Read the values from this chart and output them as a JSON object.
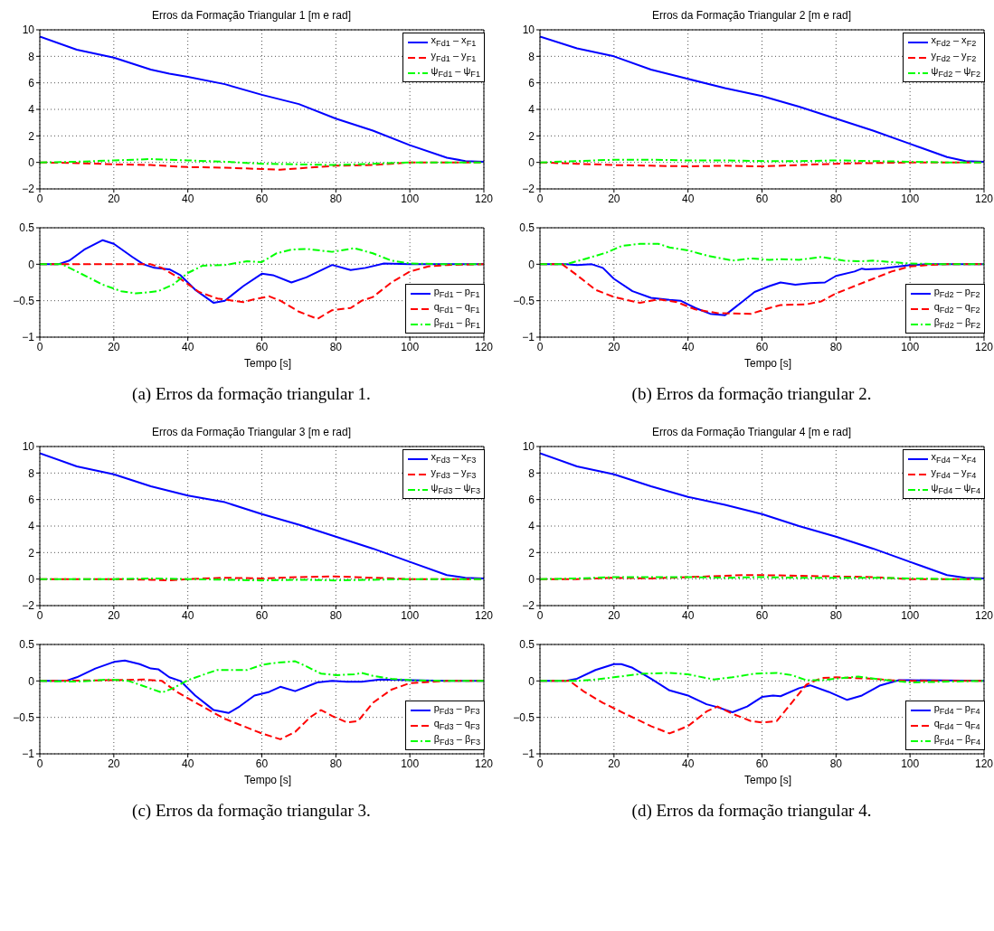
{
  "chart_data": [
    {
      "type": "line",
      "title": "Erros da Formação Triangular 1 [m e rad]",
      "xlim": [
        0,
        120
      ],
      "xticks": [
        0,
        20,
        40,
        60,
        80,
        100,
        120
      ],
      "ylim": [
        -2,
        10
      ],
      "yticks": [
        -2,
        0,
        2,
        4,
        6,
        8,
        10
      ],
      "grid": true,
      "legend": "top right",
      "series": [
        {
          "name": "x$_{Fd1}$ – x$_{F1}$",
          "color": "#0000ff",
          "line_style": "solid",
          "x": [
            0,
            10,
            20,
            30,
            35,
            40,
            50,
            60,
            70,
            80,
            90,
            100,
            110,
            115,
            120
          ],
          "values": [
            9.5,
            8.5,
            7.9,
            7.0,
            6.7,
            6.45,
            5.9,
            5.1,
            4.4,
            3.3,
            2.4,
            1.3,
            0.35,
            0.1,
            0.05
          ]
        },
        {
          "name": "y$_{Fd1}$ – y$_{F1}$",
          "color": "#ff0000",
          "line_style": "dashed",
          "x": [
            0,
            10,
            20,
            30,
            40,
            50,
            60,
            65,
            70,
            80,
            90,
            100,
            110,
            120
          ],
          "values": [
            0,
            -0.05,
            -0.15,
            -0.2,
            -0.35,
            -0.4,
            -0.5,
            -0.55,
            -0.45,
            -0.25,
            -0.2,
            0,
            0,
            0
          ]
        },
        {
          "name": "ψ$_{Fd1}$ – ψ$_{F1}$",
          "color": "#00ff00",
          "line_style": "dotted",
          "x": [
            0,
            10,
            20,
            30,
            40,
            50,
            60,
            70,
            80,
            90,
            100,
            120
          ],
          "values": [
            0,
            0.05,
            0.15,
            0.25,
            0.15,
            0.05,
            -0.1,
            -0.15,
            -0.2,
            -0.1,
            0,
            0
          ]
        }
      ]
    },
    {
      "type": "line",
      "title": "Erros da Formação Triangular 2 [m e rad]",
      "xlim": [
        0,
        120
      ],
      "xticks": [
        0,
        20,
        40,
        60,
        80,
        100,
        120
      ],
      "ylim": [
        -2,
        10
      ],
      "yticks": [
        -2,
        0,
        2,
        4,
        6,
        8,
        10
      ],
      "grid": true,
      "legend": "top right",
      "series": [
        {
          "name": "x$_{Fd2}$ – x$_{F2}$",
          "color": "#0000ff",
          "line_style": "solid",
          "x": [
            0,
            10,
            20,
            30,
            40,
            50,
            60,
            70,
            80,
            90,
            100,
            110,
            115,
            120
          ],
          "values": [
            9.5,
            8.6,
            8.0,
            7.0,
            6.3,
            5.6,
            5.0,
            4.2,
            3.3,
            2.4,
            1.4,
            0.4,
            0.1,
            0.05
          ]
        },
        {
          "name": "y$_{Fd2}$ – y$_{F2}$",
          "color": "#ff0000",
          "line_style": "dashed",
          "x": [
            0,
            10,
            20,
            30,
            40,
            50,
            60,
            70,
            80,
            90,
            100,
            110,
            120
          ],
          "values": [
            0,
            -0.1,
            -0.2,
            -0.25,
            -0.3,
            -0.25,
            -0.3,
            -0.2,
            -0.1,
            -0.05,
            0,
            0,
            0
          ]
        },
        {
          "name": "ψ$_{Fd2}$ – ψ$_{F2}$",
          "color": "#00ff00",
          "line_style": "dotted",
          "x": [
            0,
            10,
            20,
            30,
            40,
            50,
            60,
            70,
            80,
            90,
            100,
            110,
            120
          ],
          "values": [
            0,
            0.1,
            0.2,
            0.2,
            0.15,
            0.15,
            0.1,
            0.1,
            0.15,
            0.1,
            0.05,
            0,
            0
          ]
        }
      ]
    },
    {
      "type": "line",
      "xlabel": "Tempo [s]",
      "annotations": [
        "(a)  Erros da formação triangular 1."
      ],
      "xlim": [
        0,
        120
      ],
      "xticks": [
        0,
        20,
        40,
        60,
        80,
        100,
        120
      ],
      "ylim": [
        -1,
        0.5
      ],
      "yticks": [
        -1,
        -0.5,
        0,
        0.5
      ],
      "grid": true,
      "legend": "bottom right",
      "series": [
        {
          "name": "p$_{Fd1}$ – p$_{F1}$",
          "color": "#0000ff",
          "line_style": "solid",
          "x": [
            0,
            5,
            8,
            12,
            17,
            20,
            25,
            28,
            31,
            35,
            38,
            42,
            47,
            50,
            55,
            60,
            63,
            68,
            72,
            79,
            84,
            88,
            93,
            100,
            120
          ],
          "values": [
            0,
            0,
            0.05,
            0.2,
            0.33,
            0.28,
            0.1,
            0,
            -0.05,
            -0.07,
            -0.15,
            -0.35,
            -0.53,
            -0.5,
            -0.3,
            -0.13,
            -0.15,
            -0.25,
            -0.18,
            -0.01,
            -0.08,
            -0.05,
            0.01,
            0,
            0
          ]
        },
        {
          "name": "q$_{Fd1}$ – q$_{F1}$",
          "color": "#ff0000",
          "line_style": "dashed",
          "x": [
            0,
            30,
            33,
            38,
            43,
            48,
            55,
            58,
            62,
            65,
            70,
            75,
            79,
            84,
            87,
            90,
            95,
            100,
            105,
            110,
            120
          ],
          "values": [
            0,
            0,
            -0.05,
            -0.2,
            -0.38,
            -0.47,
            -0.52,
            -0.48,
            -0.44,
            -0.5,
            -0.65,
            -0.75,
            -0.63,
            -0.6,
            -0.5,
            -0.45,
            -0.25,
            -0.1,
            -0.03,
            -0.01,
            0
          ]
        },
        {
          "name": "β$_{Fd1}$ – β$_{F1}$",
          "color": "#00ff00",
          "line_style": "dotted",
          "x": [
            0,
            6,
            10,
            17,
            22,
            26,
            32,
            36,
            40,
            44,
            50,
            56,
            60,
            64,
            68,
            72,
            79,
            85,
            90,
            95,
            100,
            110,
            120
          ],
          "values": [
            0,
            0,
            -0.1,
            -0.28,
            -0.37,
            -0.4,
            -0.37,
            -0.28,
            -0.12,
            -0.02,
            -0.01,
            0.04,
            0.03,
            0.15,
            0.2,
            0.21,
            0.17,
            0.22,
            0.15,
            0.05,
            0.01,
            0,
            0
          ]
        }
      ]
    },
    {
      "type": "line",
      "xlabel": "Tempo [s]",
      "annotations": [
        "(b)  Erros da formação triangular 2."
      ],
      "xlim": [
        0,
        120
      ],
      "xticks": [
        0,
        20,
        40,
        60,
        80,
        100,
        120
      ],
      "ylim": [
        -1,
        0.5
      ],
      "yticks": [
        -1,
        -0.5,
        0,
        0.5
      ],
      "grid": true,
      "legend": "bottom right",
      "series": [
        {
          "name": "p$_{Fd2}$ – p$_{F2}$",
          "color": "#0000ff",
          "line_style": "solid",
          "x": [
            0,
            7,
            10,
            14,
            17,
            20,
            25,
            30,
            35,
            38,
            42,
            46,
            50,
            52,
            55,
            58,
            62,
            65,
            69,
            73,
            77,
            80,
            85,
            87,
            88,
            92,
            97,
            100,
            105,
            120
          ],
          "values": [
            0,
            0,
            -0.01,
            0,
            -0.05,
            -0.2,
            -0.37,
            -0.46,
            -0.49,
            -0.5,
            -0.6,
            -0.68,
            -0.7,
            -0.62,
            -0.5,
            -0.38,
            -0.3,
            -0.25,
            -0.28,
            -0.26,
            -0.25,
            -0.16,
            -0.1,
            -0.06,
            -0.07,
            -0.06,
            -0.03,
            -0.01,
            0,
            0
          ]
        },
        {
          "name": "q$_{Fd2}$ – q$_{F2}$",
          "color": "#ff0000",
          "line_style": "dashed",
          "x": [
            0,
            6,
            10,
            15,
            20,
            27,
            32,
            37,
            42,
            48,
            57,
            62,
            65,
            72,
            76,
            80,
            85,
            90,
            95,
            100,
            105,
            110,
            120
          ],
          "values": [
            0,
            0,
            -0.15,
            -0.35,
            -0.45,
            -0.53,
            -0.48,
            -0.52,
            -0.62,
            -0.67,
            -0.68,
            -0.6,
            -0.56,
            -0.55,
            -0.51,
            -0.4,
            -0.3,
            -0.2,
            -0.1,
            -0.03,
            -0.01,
            0,
            0
          ]
        },
        {
          "name": "β$_{Fd2}$ – β$_{F2}$",
          "color": "#00ff00",
          "line_style": "dotted",
          "x": [
            0,
            7,
            12,
            18,
            22,
            27,
            32,
            35,
            40,
            45,
            52,
            57,
            62,
            65,
            70,
            76,
            82,
            86,
            90,
            95,
            100,
            110,
            120
          ],
          "values": [
            0,
            0,
            0.07,
            0.16,
            0.25,
            0.28,
            0.28,
            0.23,
            0.19,
            0.12,
            0.05,
            0.08,
            0.06,
            0.07,
            0.06,
            0.1,
            0.05,
            0.04,
            0.05,
            0.03,
            0.01,
            0,
            0
          ]
        }
      ]
    },
    {
      "type": "line",
      "title": "Erros da Formação Triangular 3 [m e rad]",
      "xlim": [
        0,
        120
      ],
      "xticks": [
        0,
        20,
        40,
        60,
        80,
        100,
        120
      ],
      "ylim": [
        -2,
        10
      ],
      "yticks": [
        -2,
        0,
        2,
        4,
        6,
        8,
        10
      ],
      "grid": true,
      "legend": "top right",
      "series": [
        {
          "name": "x$_{Fd3}$ – x$_{F3}$",
          "color": "#0000ff",
          "line_style": "solid",
          "x": [
            0,
            10,
            20,
            30,
            40,
            50,
            60,
            70,
            80,
            90,
            100,
            110,
            115,
            120
          ],
          "values": [
            9.5,
            8.5,
            7.9,
            7.0,
            6.3,
            5.8,
            4.9,
            4.1,
            3.2,
            2.3,
            1.3,
            0.3,
            0.1,
            0.05
          ]
        },
        {
          "name": "y$_{Fd3}$ – y$_{F3}$",
          "color": "#ff0000",
          "line_style": "dashed",
          "x": [
            0,
            10,
            20,
            30,
            35,
            40,
            50,
            60,
            70,
            80,
            90,
            100,
            110,
            120
          ],
          "values": [
            0,
            0,
            0,
            -0.05,
            -0.1,
            0,
            0.1,
            0.05,
            0.15,
            0.2,
            0.1,
            0,
            0,
            0
          ]
        },
        {
          "name": "ψ$_{Fd3}$ – ψ$_{F3}$",
          "color": "#00ff00",
          "line_style": "dotted",
          "x": [
            0,
            10,
            20,
            30,
            40,
            50,
            60,
            70,
            80,
            90,
            100,
            110,
            120
          ],
          "values": [
            0,
            0,
            0,
            0.05,
            0,
            -0.05,
            -0.1,
            -0.05,
            -0.1,
            -0.05,
            0,
            0,
            0
          ]
        }
      ]
    },
    {
      "type": "line",
      "title": "Erros da Formação Triangular 4 [m e rad]",
      "xlim": [
        0,
        120
      ],
      "xticks": [
        0,
        20,
        40,
        60,
        80,
        100,
        120
      ],
      "ylim": [
        -2,
        10
      ],
      "yticks": [
        -2,
        0,
        2,
        4,
        6,
        8,
        10
      ],
      "grid": true,
      "legend": "top right",
      "series": [
        {
          "name": "x$_{Fd4}$ – x$_{F4}$",
          "color": "#0000ff",
          "line_style": "solid",
          "x": [
            0,
            10,
            20,
            30,
            40,
            50,
            60,
            70,
            80,
            90,
            100,
            110,
            115,
            120
          ],
          "values": [
            9.5,
            8.5,
            7.9,
            7.0,
            6.2,
            5.6,
            4.9,
            4.0,
            3.2,
            2.3,
            1.3,
            0.3,
            0.1,
            0.05
          ]
        },
        {
          "name": "y$_{Fd4}$ – y$_{F4}$",
          "color": "#ff0000",
          "line_style": "dashed",
          "x": [
            0,
            10,
            20,
            30,
            40,
            50,
            55,
            60,
            70,
            80,
            90,
            100,
            110,
            120
          ],
          "values": [
            0,
            0,
            0.1,
            0.05,
            0.15,
            0.25,
            0.3,
            0.3,
            0.25,
            0.2,
            0.15,
            0,
            0,
            0
          ]
        },
        {
          "name": "ψ$_{Fd4}$ – ψ$_{F4}$",
          "color": "#00ff00",
          "line_style": "dotted",
          "x": [
            0,
            10,
            20,
            30,
            40,
            50,
            60,
            70,
            80,
            90,
            100,
            110,
            120
          ],
          "values": [
            0,
            0.05,
            0.15,
            0.15,
            0.15,
            0.1,
            0.15,
            0.1,
            0.1,
            0.1,
            0.05,
            0,
            0
          ]
        }
      ]
    },
    {
      "type": "line",
      "xlabel": "Tempo [s]",
      "annotations": [
        "(c)  Erros da formação triangular 3."
      ],
      "xlim": [
        0,
        120
      ],
      "xticks": [
        0,
        20,
        40,
        60,
        80,
        100,
        120
      ],
      "ylim": [
        -1,
        0.5
      ],
      "yticks": [
        -1,
        -0.5,
        0,
        0.5
      ],
      "grid": true,
      "legend": "bottom right",
      "series": [
        {
          "name": "p$_{Fd3}$ – p$_{F3}$",
          "color": "#0000ff",
          "line_style": "solid",
          "x": [
            0,
            7,
            10,
            15,
            20,
            23,
            27,
            30,
            32,
            35,
            38,
            42,
            47,
            51,
            54,
            58,
            62,
            65,
            69,
            75,
            79,
            83,
            87,
            92,
            100,
            110,
            120
          ],
          "values": [
            0,
            0,
            0.05,
            0.17,
            0.26,
            0.28,
            0.23,
            0.17,
            0.16,
            0.05,
            0,
            -0.2,
            -0.4,
            -0.44,
            -0.35,
            -0.2,
            -0.15,
            -0.08,
            -0.14,
            -0.02,
            0,
            -0.01,
            -0.01,
            0.02,
            0.01,
            0,
            0
          ]
        },
        {
          "name": "q$_{Fd3}$ – q$_{F3}$",
          "color": "#ff0000",
          "line_style": "dashed",
          "x": [
            0,
            20,
            28,
            33,
            37,
            45,
            50,
            55,
            60,
            65,
            69,
            73,
            76,
            79,
            83,
            86,
            90,
            95,
            100,
            110,
            120
          ],
          "values": [
            0,
            0.01,
            0.02,
            0,
            -0.15,
            -0.38,
            -0.52,
            -0.62,
            -0.72,
            -0.8,
            -0.7,
            -0.5,
            -0.4,
            -0.48,
            -0.57,
            -0.55,
            -0.3,
            -0.12,
            -0.03,
            0,
            0
          ]
        },
        {
          "name": "β$_{Fd3}$ – β$_{F3}$",
          "color": "#00ff00",
          "line_style": "dotted",
          "x": [
            0,
            10,
            16,
            19,
            24,
            28,
            33,
            36,
            40,
            45,
            48,
            52,
            56,
            60,
            64,
            69,
            72,
            76,
            80,
            85,
            87,
            90,
            95,
            100,
            110,
            120
          ],
          "values": [
            0,
            -0.01,
            0.01,
            0.02,
            0,
            -0.07,
            -0.16,
            -0.1,
            0.01,
            0.1,
            0.15,
            0.15,
            0.15,
            0.22,
            0.25,
            0.27,
            0.2,
            0.1,
            0.08,
            0.09,
            0.11,
            0.07,
            0.03,
            0.01,
            0,
            0
          ]
        }
      ]
    },
    {
      "type": "line",
      "xlabel": "Tempo [s]",
      "annotations": [
        "(d)  Erros da formação triangular 4."
      ],
      "xlim": [
        0,
        120
      ],
      "xticks": [
        0,
        20,
        40,
        60,
        80,
        100,
        120
      ],
      "ylim": [
        -1,
        0.5
      ],
      "yticks": [
        -1,
        -0.5,
        0,
        0.5
      ],
      "grid": true,
      "legend": "bottom right",
      "series": [
        {
          "name": "p$_{Fd4}$ – p$_{F4}$",
          "color": "#0000ff",
          "line_style": "solid",
          "x": [
            0,
            7,
            10,
            15,
            20,
            22,
            25,
            30,
            35,
            40,
            45,
            48,
            52,
            56,
            60,
            63,
            65,
            70,
            73,
            78,
            83,
            87,
            92,
            97,
            100,
            120
          ],
          "values": [
            0,
            0,
            0.03,
            0.15,
            0.23,
            0.23,
            0.18,
            0.03,
            -0.13,
            -0.2,
            -0.32,
            -0.36,
            -0.43,
            -0.35,
            -0.22,
            -0.2,
            -0.21,
            -0.1,
            -0.06,
            -0.15,
            -0.26,
            -0.2,
            -0.06,
            0.01,
            0.01,
            0
          ]
        },
        {
          "name": "q$_{Fd4}$ – q$_{F4}$",
          "color": "#ff0000",
          "line_style": "dashed",
          "x": [
            0,
            8,
            12,
            17,
            23,
            30,
            35,
            40,
            45,
            48,
            52,
            57,
            60,
            64,
            68,
            72,
            76,
            80,
            85,
            90,
            95,
            100,
            110,
            120
          ],
          "values": [
            0,
            0,
            -0.15,
            -0.3,
            -0.45,
            -0.62,
            -0.72,
            -0.62,
            -0.42,
            -0.35,
            -0.45,
            -0.55,
            -0.57,
            -0.55,
            -0.3,
            -0.05,
            0.04,
            0.05,
            0.04,
            0.03,
            0.01,
            0,
            0,
            0
          ]
        },
        {
          "name": "β$_{Fd4}$ – β$_{F4}$",
          "color": "#00ff00",
          "line_style": "dotted",
          "x": [
            0,
            10,
            15,
            20,
            28,
            35,
            40,
            47,
            52,
            58,
            64,
            68,
            72,
            76,
            80,
            86,
            92,
            96,
            100,
            120
          ],
          "values": [
            0,
            0,
            0.02,
            0.05,
            0.1,
            0.11,
            0.09,
            0.02,
            0.05,
            0.1,
            0.11,
            0.08,
            0.01,
            0.01,
            0.03,
            0.06,
            0.02,
            0,
            -0.02,
            0
          ]
        }
      ]
    }
  ]
}
